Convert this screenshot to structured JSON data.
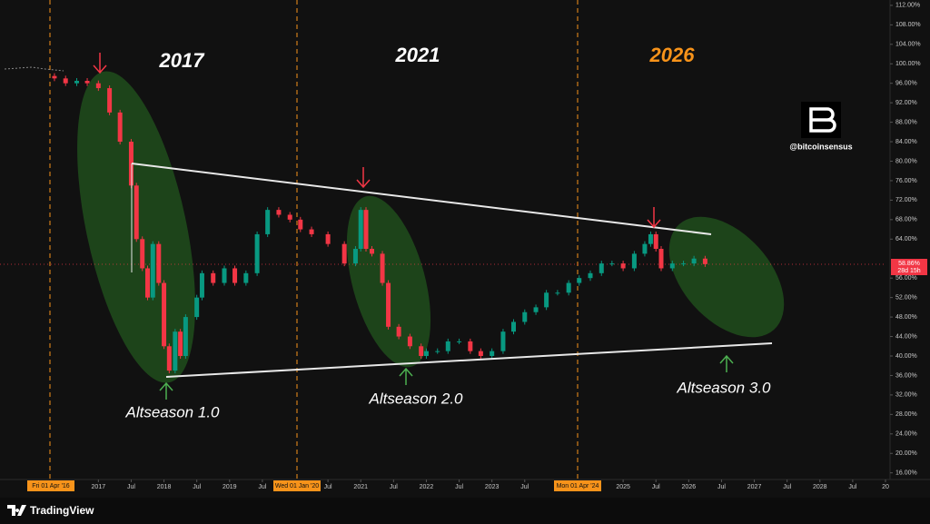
{
  "chart_data": {
    "type": "candlestick",
    "x": [
      2016.33,
      2016.5,
      2016.67,
      2016.83,
      2017.0,
      2017.17,
      2017.33,
      2017.5,
      2017.58,
      2017.67,
      2017.75,
      2017.83,
      2017.92,
      2018.0,
      2018.08,
      2018.17,
      2018.25,
      2018.33,
      2018.5,
      2018.58,
      2018.75,
      2018.92,
      2019.08,
      2019.25,
      2019.42,
      2019.58,
      2019.75,
      2019.92,
      2020.08,
      2020.25,
      2020.5,
      2020.75,
      2020.92,
      2021.0,
      2021.08,
      2021.17,
      2021.33,
      2021.42,
      2021.58,
      2021.75,
      2021.92,
      2022.0,
      2022.17,
      2022.33,
      2022.5,
      2022.67,
      2022.83,
      2023.0,
      2023.17,
      2023.33,
      2023.5,
      2023.67,
      2023.83,
      2024.0,
      2024.17,
      2024.33,
      2024.5,
      2024.67,
      2024.83,
      2025.0,
      2025.17,
      2025.33,
      2025.42,
      2025.5,
      2025.58,
      2025.75,
      2025.92,
      2026.08,
      2026.25
    ],
    "open": [
      97.5,
      97,
      96,
      96.5,
      96,
      95,
      90,
      84,
      75,
      64,
      58,
      52,
      63,
      55,
      42,
      37,
      45,
      40,
      48,
      52,
      57,
      55,
      58,
      55,
      57,
      65,
      70,
      69,
      68,
      66,
      65,
      63,
      59,
      62,
      70,
      62,
      61,
      55,
      46,
      44,
      42,
      40,
      41,
      41,
      43,
      43,
      41,
      40,
      41,
      45,
      47,
      49,
      50,
      53,
      53,
      55,
      56,
      57,
      59,
      59,
      58,
      61,
      63,
      65,
      62,
      58,
      59,
      59,
      60
    ],
    "close": [
      97,
      96,
      96.5,
      96,
      95,
      90,
      84,
      75,
      64,
      58,
      52,
      63,
      55,
      42,
      37,
      45,
      40,
      48,
      52,
      57,
      55,
      58,
      55,
      57,
      65,
      70,
      69,
      68,
      66,
      65,
      63,
      59,
      62,
      70,
      62,
      61,
      55,
      46,
      44,
      42,
      40,
      41,
      41,
      43,
      43,
      41,
      40,
      41,
      45,
      47,
      49,
      50,
      53,
      53,
      55,
      56,
      57,
      59,
      59,
      58,
      61,
      63,
      65,
      62,
      58,
      59,
      59,
      60,
      58.86
    ],
    "up_color": "#089981",
    "down_color": "#f23645",
    "xlim": [
      2015.5,
      2029
    ],
    "xticks": [
      2017,
      {
        "value": 2017.5,
        "label": "Jul"
      },
      2018,
      {
        "value": 2018.5,
        "label": "Jul"
      },
      2019,
      {
        "value": 2019.5,
        "label": "Jul"
      },
      {
        "value": 2020.5,
        "label": "Jul"
      },
      2021,
      {
        "value": 2021.5,
        "label": "Jul"
      },
      2022,
      {
        "value": 2022.5,
        "label": "Jul"
      },
      2023,
      {
        "value": 2023.5,
        "label": "Jul"
      },
      2025,
      {
        "value": 2025.5,
        "label": "Jul"
      },
      2026,
      {
        "value": 2026.5,
        "label": "Jul"
      },
      2027,
      {
        "value": 2027.5,
        "label": "Jul"
      },
      2028,
      {
        "value": 2028.5,
        "label": "Jul"
      },
      {
        "value": 2029,
        "label": "20"
      }
    ],
    "ylim": [
      12.4,
      113.1
    ],
    "yticks": [
      {
        "value": 16,
        "label": "16.00%"
      },
      {
        "value": 20,
        "label": "20.00%"
      },
      {
        "value": 24,
        "label": "24.00%"
      },
      {
        "value": 28,
        "label": "28.00%"
      },
      {
        "value": 32,
        "label": "32.00%"
      },
      {
        "value": 36,
        "label": "36.00%"
      },
      {
        "value": 40,
        "label": "40.00%"
      },
      {
        "value": 44,
        "label": "44.00%"
      },
      {
        "value": 48,
        "label": "48.00%"
      },
      {
        "value": 52,
        "label": "52.00%"
      },
      {
        "value": 56,
        "label": "56.00%"
      },
      {
        "value": 64,
        "label": "64.00%"
      },
      {
        "value": 68,
        "label": "68.00%"
      },
      {
        "value": 72,
        "label": "72.00%"
      },
      {
        "value": 76,
        "label": "76.00%"
      },
      {
        "value": 80,
        "label": "80.00%"
      },
      {
        "value": 84,
        "label": "84.00%"
      },
      {
        "value": 88,
        "label": "88.00%"
      },
      {
        "value": 92,
        "label": "92.00%"
      },
      {
        "value": 96,
        "label": "96.00%"
      },
      {
        "value": 100,
        "label": "100.00%"
      },
      {
        "value": 104,
        "label": "104.00%"
      },
      {
        "value": 108,
        "label": "108.00%"
      },
      {
        "value": 112,
        "label": "112.00%"
      }
    ],
    "date_markers": [
      "Fri 01 Apr '16",
      "Wed 01 Jan '20",
      "Mon 01 Apr '24"
    ],
    "annotations": [
      "2017",
      "2021",
      "2026"
    ],
    "altseasons": [
      "Altseason 1.0",
      "Altseason 2.0",
      "Altseason 3.0"
    ],
    "price_label": "58.86%",
    "countdown": "28d 15h",
    "watermark": "@bitcoinsensus",
    "brand": "TradingView"
  }
}
